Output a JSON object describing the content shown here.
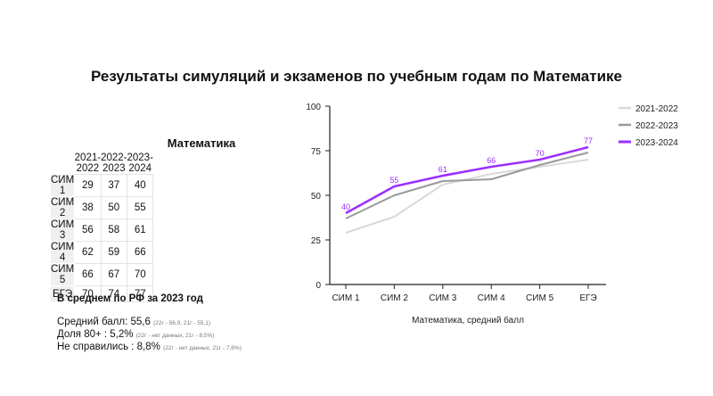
{
  "title": "Результаты симуляций и экзаменов по учебным годам по Математике",
  "table": {
    "caption": "Математика",
    "columns": [
      "2021-2022",
      "2022-2023",
      "2023-2024"
    ],
    "rows": [
      {
        "label": "СИМ 1",
        "values": [
          "29",
          "37",
          "40"
        ]
      },
      {
        "label": "СИМ 2",
        "values": [
          "38",
          "50",
          "55"
        ]
      },
      {
        "label": "СИМ 3",
        "values": [
          "56",
          "58",
          "61"
        ]
      },
      {
        "label": "СИМ 4",
        "values": [
          "62",
          "59",
          "66"
        ]
      },
      {
        "label": "СИМ 5",
        "values": [
          "66",
          "67",
          "70"
        ]
      },
      {
        "label": "ЕГЭ",
        "values": [
          "70",
          "74",
          "77"
        ]
      }
    ]
  },
  "stats": {
    "title": "В среднем по РФ за 2023 год",
    "avg_label": "Средний балл: 55,6",
    "avg_note": "(22г - 56,9, 21г - 55,1)",
    "share80_label": "Доля 80+ : 5,2%",
    "share80_note": "(22г - нет данных, 21г - 8,5%)",
    "failed_label": "Не справились : 8,8%",
    "failed_note": "(22г - нет данных, 21г - 7,6%)"
  },
  "colors": {
    "2021-2022": "#d9d9d9",
    "2022-2023": "#9a9a9a",
    "2023-2024": "#9b30ff",
    "axis": "#222222"
  },
  "chart_data": {
    "type": "line",
    "title": "",
    "xlabel": "Математика, средний балл",
    "ylabel": "",
    "categories": [
      "СИМ 1",
      "СИМ 2",
      "СИМ 3",
      "СИМ 4",
      "СИМ 5",
      "ЕГЭ"
    ],
    "ylim": [
      0,
      100
    ],
    "yticks": [
      0,
      25,
      50,
      75,
      100
    ],
    "grid": false,
    "legend_position": "right",
    "series": [
      {
        "name": "2021-2022",
        "values": [
          29,
          38,
          56,
          62,
          66,
          70
        ],
        "labels": false
      },
      {
        "name": "2022-2023",
        "values": [
          37,
          50,
          58,
          59,
          67,
          74
        ],
        "labels": false
      },
      {
        "name": "2023-2024",
        "values": [
          40,
          55,
          61,
          66,
          70,
          77
        ],
        "labels": true
      }
    ]
  }
}
